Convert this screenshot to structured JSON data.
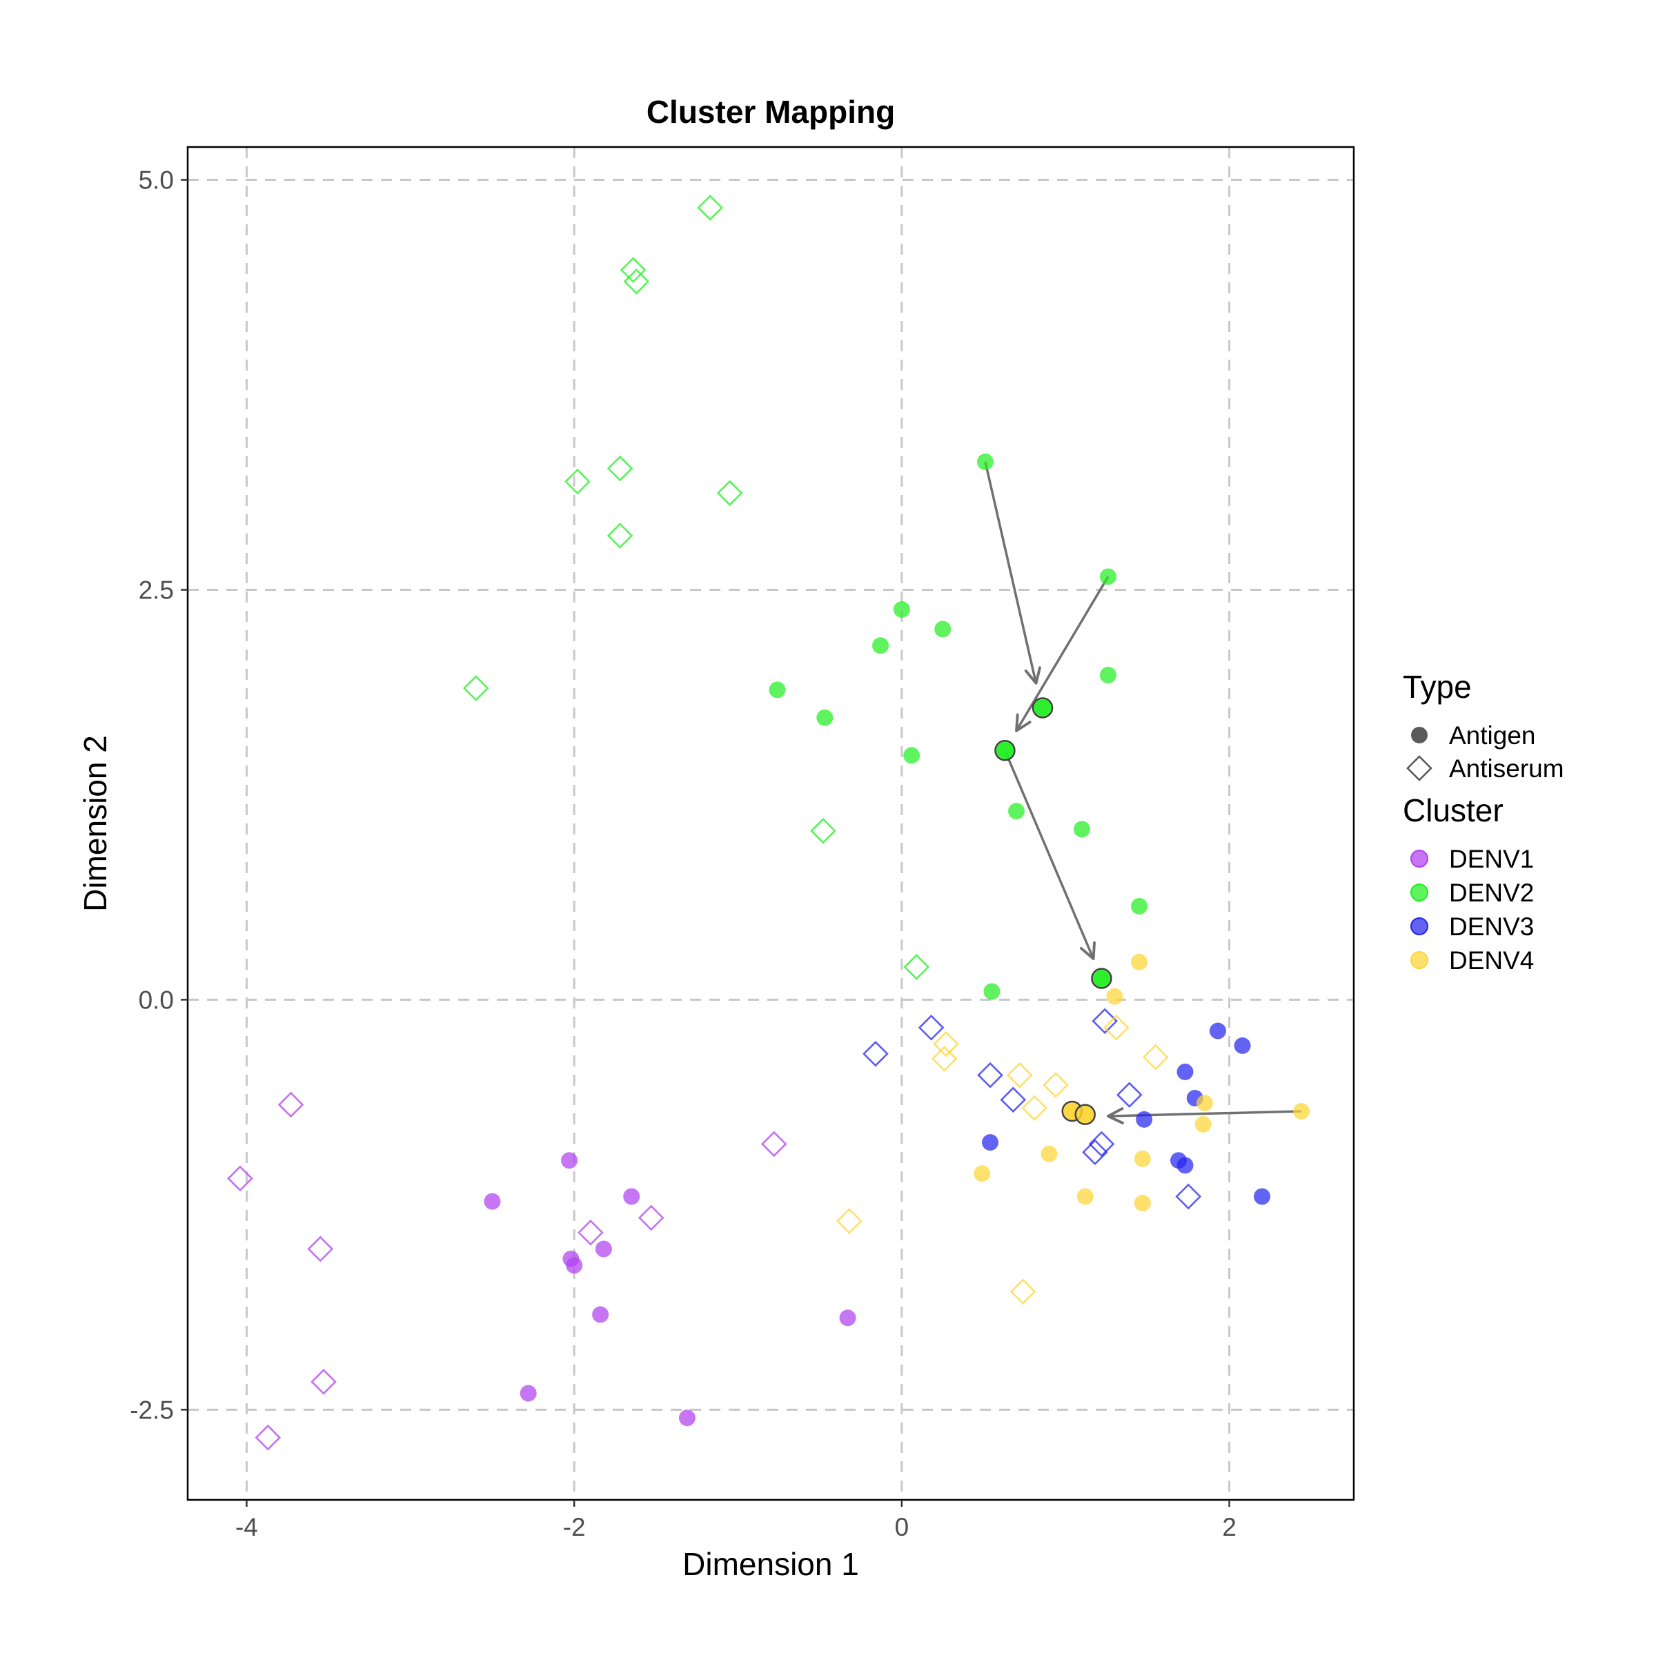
{
  "chart_data": {
    "type": "scatter",
    "title": "Cluster Mapping",
    "xlabel": "Dimension 1",
    "ylabel": "Dimension 2",
    "xlim": [
      -4.36,
      2.76
    ],
    "ylim": [
      -3.05,
      5.2
    ],
    "x_ticks": [
      -4,
      -2,
      0,
      2
    ],
    "x_tick_labels": [
      "-4",
      "-2",
      "0",
      "2"
    ],
    "y_ticks": [
      -2.5,
      0,
      2.5,
      5
    ],
    "y_tick_labels": [
      "-2.5",
      "0.0",
      "2.5",
      "5.0"
    ],
    "grid": true,
    "legend_placement": "right",
    "legend": {
      "type_title": "Type",
      "type_entries": [
        {
          "label": "Antigen",
          "shape": "circle"
        },
        {
          "label": "Antiserum",
          "shape": "diamond"
        }
      ],
      "cluster_title": "Cluster",
      "cluster_entries": [
        {
          "label": "DENV1",
          "color": "#b041ee"
        },
        {
          "label": "DENV2",
          "color": "#21ef21"
        },
        {
          "label": "DENV3",
          "color": "#2525ef"
        },
        {
          "label": "DENV4",
          "color": "#fdd535"
        }
      ]
    },
    "colors": {
      "DENV1": "#b041ee",
      "DENV2": "#21ef21",
      "DENV3": "#2525ef",
      "DENV4": "#fdd535"
    },
    "series": [
      {
        "cluster": "DENV1",
        "antigens": [
          [
            -2.03,
            -0.98
          ],
          [
            -2.5,
            -1.23
          ],
          [
            -1.65,
            -1.2
          ],
          [
            -2.02,
            -1.58
          ],
          [
            -2.0,
            -1.62
          ],
          [
            -1.82,
            -1.52
          ],
          [
            -1.84,
            -1.92
          ],
          [
            -2.28,
            -2.4
          ],
          [
            -1.31,
            -2.55
          ],
          [
            -0.33,
            -1.94
          ]
        ],
        "antisera": [
          [
            -3.73,
            -0.64
          ],
          [
            -4.04,
            -1.09
          ],
          [
            -3.55,
            -1.52
          ],
          [
            -3.53,
            -2.33
          ],
          [
            -3.87,
            -2.67
          ],
          [
            -1.9,
            -1.42
          ],
          [
            -1.53,
            -1.33
          ],
          [
            -0.78,
            -0.88
          ]
        ]
      },
      {
        "cluster": "DENV2",
        "antigens": [
          [
            0.51,
            3.28
          ],
          [
            1.26,
            2.58
          ],
          [
            0.0,
            2.38
          ],
          [
            -0.13,
            2.16
          ],
          [
            0.25,
            2.26
          ],
          [
            -0.76,
            1.89
          ],
          [
            -0.47,
            1.72
          ],
          [
            1.26,
            1.98
          ],
          [
            0.86,
            1.78
          ],
          [
            0.63,
            1.52
          ],
          [
            0.06,
            1.49
          ],
          [
            0.7,
            1.15
          ],
          [
            1.1,
            1.04
          ],
          [
            1.45,
            0.57
          ],
          [
            0.55,
            0.05
          ],
          [
            1.22,
            0.13
          ]
        ],
        "antisera": [
          [
            -1.17,
            4.83
          ],
          [
            -1.64,
            4.45
          ],
          [
            -1.62,
            4.38
          ],
          [
            -1.72,
            3.24
          ],
          [
            -1.98,
            3.16
          ],
          [
            -1.05,
            3.09
          ],
          [
            -1.72,
            2.83
          ],
          [
            -2.6,
            1.9
          ],
          [
            -0.48,
            1.03
          ],
          [
            0.09,
            0.2
          ]
        ]
      },
      {
        "cluster": "DENV3",
        "antigens": [
          [
            1.93,
            -0.19
          ],
          [
            2.08,
            -0.28
          ],
          [
            1.73,
            -0.44
          ],
          [
            1.79,
            -0.6
          ],
          [
            1.48,
            -0.73
          ],
          [
            0.54,
            -0.87
          ],
          [
            1.69,
            -0.98
          ],
          [
            1.73,
            -1.01
          ],
          [
            2.2,
            -1.2
          ]
        ],
        "antisera": [
          [
            1.24,
            -0.13
          ],
          [
            0.18,
            -0.17
          ],
          [
            -0.16,
            -0.33
          ],
          [
            0.54,
            -0.46
          ],
          [
            0.68,
            -0.61
          ],
          [
            1.39,
            -0.58
          ],
          [
            1.22,
            -0.88
          ],
          [
            1.18,
            -0.93
          ],
          [
            1.75,
            -1.2
          ]
        ]
      },
      {
        "cluster": "DENV4",
        "antigens": [
          [
            1.45,
            0.23
          ],
          [
            1.3,
            0.02
          ],
          [
            1.85,
            -0.63
          ],
          [
            1.84,
            -0.76
          ],
          [
            2.44,
            -0.68
          ],
          [
            1.04,
            -0.68
          ],
          [
            1.12,
            -0.7
          ],
          [
            0.9,
            -0.94
          ],
          [
            1.47,
            -0.97
          ],
          [
            0.49,
            -1.06
          ],
          [
            1.12,
            -1.2
          ],
          [
            1.47,
            -1.24
          ]
        ],
        "antisera": [
          [
            1.31,
            -0.17
          ],
          [
            0.27,
            -0.27
          ],
          [
            0.26,
            -0.36
          ],
          [
            1.55,
            -0.35
          ],
          [
            0.72,
            -0.46
          ],
          [
            0.94,
            -0.52
          ],
          [
            0.81,
            -0.66
          ],
          [
            -0.32,
            -1.35
          ],
          [
            0.74,
            -1.78
          ]
        ]
      }
    ],
    "highlighted_antigens": [
      {
        "cluster": "DENV2",
        "point": [
          0.86,
          1.78
        ]
      },
      {
        "cluster": "DENV2",
        "point": [
          0.63,
          1.52
        ]
      },
      {
        "cluster": "DENV2",
        "point": [
          1.22,
          0.13
        ]
      },
      {
        "cluster": "DENV4",
        "point": [
          1.04,
          -0.68
        ]
      },
      {
        "cluster": "DENV4",
        "point": [
          1.12,
          -0.7
        ]
      }
    ],
    "arrows": [
      {
        "from": [
          0.51,
          3.28
        ],
        "to": [
          0.82,
          1.93
        ]
      },
      {
        "from": [
          1.26,
          2.58
        ],
        "to": [
          0.7,
          1.64
        ]
      },
      {
        "from": [
          0.63,
          1.52
        ],
        "to": [
          1.17,
          0.25
        ]
      },
      {
        "from": [
          2.44,
          -0.68
        ],
        "to": [
          1.26,
          -0.71
        ]
      }
    ]
  }
}
